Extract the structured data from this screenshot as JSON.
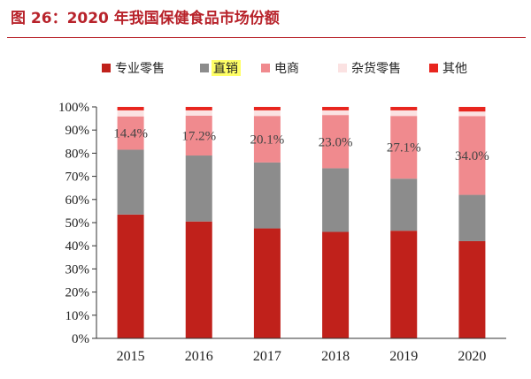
{
  "page_title": "图 26：2020 年我国保健食品市场份额",
  "chart_data": {
    "type": "bar",
    "stacked": true,
    "categories": [
      "2015",
      "2016",
      "2017",
      "2018",
      "2019",
      "2020"
    ],
    "series": [
      {
        "name": "专业零售",
        "color": "#c0211b",
        "values": [
          53.5,
          50.5,
          47.5,
          46.0,
          46.5,
          42.0
        ]
      },
      {
        "name": "直销",
        "color": "#8c8c8c",
        "values": [
          28.0,
          28.5,
          28.5,
          27.5,
          22.5,
          20.0
        ]
      },
      {
        "name": "电商",
        "color": "#f08a8e",
        "values": [
          14.4,
          17.2,
          20.1,
          23.0,
          27.1,
          34.0
        ]
      },
      {
        "name": "杂货零售",
        "color": "#fbe2e2",
        "values": [
          2.6,
          2.3,
          2.4,
          2.0,
          2.4,
          2.0
        ]
      },
      {
        "name": "其他",
        "color": "#e8251e",
        "values": [
          1.5,
          1.5,
          1.5,
          1.5,
          1.5,
          2.0
        ]
      }
    ],
    "data_labels": [
      "14.4%",
      "17.2%",
      "20.1%",
      "23.0%",
      "27.1%",
      "34.0%"
    ],
    "label_series": "电商",
    "yticks": [
      "0%",
      "10%",
      "20%",
      "30%",
      "40%",
      "50%",
      "60%",
      "70%",
      "80%",
      "90%",
      "100%"
    ],
    "ylim": [
      0,
      100
    ],
    "legend_position": "top",
    "highlighted_legend_item": "直销",
    "highlight_color": "#ffff66",
    "grid": false
  }
}
